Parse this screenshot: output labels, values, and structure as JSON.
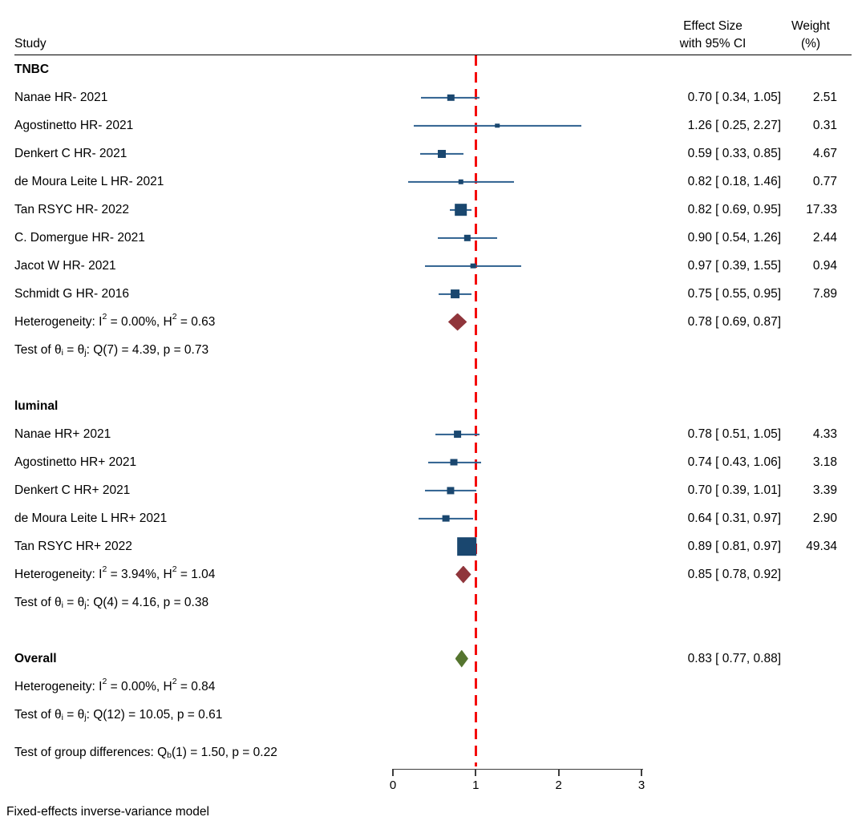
{
  "header": {
    "study": "Study",
    "effect_line1": "Effect Size",
    "effect_line2": "with 95% CI",
    "weight_line1": "Weight",
    "weight_line2": "(%)"
  },
  "footer": {
    "note": "Fixed-effects inverse-variance model"
  },
  "colors": {
    "square": "#1a476f",
    "ci_line": "#2f6190",
    "diamond_maroon": "#90353b",
    "diamond_green": "#55752f",
    "ref_line": "#f40b0b",
    "axis": "#3d3d3d",
    "rule": "#000000"
  },
  "chart_data": {
    "type": "forest",
    "title": "",
    "x_axis": {
      "min": 0,
      "max": 3,
      "ticks": [
        "0",
        "1",
        "2",
        "3"
      ],
      "ref_line": 1
    },
    "legend": null,
    "rows": [
      {
        "type": "group",
        "label": "TNBC"
      },
      {
        "type": "study",
        "label": "Nanae HR- 2021",
        "est": 0.7,
        "lo": 0.34,
        "hi": 1.05,
        "effect": "0.70 [ 0.34, 1.05]",
        "weight": "2.51",
        "w": 2.51
      },
      {
        "type": "study",
        "label": "Agostinetto HR- 2021",
        "est": 1.26,
        "lo": 0.25,
        "hi": 2.27,
        "effect": "1.26 [ 0.25, 2.27]",
        "weight": "0.31",
        "w": 0.31
      },
      {
        "type": "study",
        "label": "Denkert C HR- 2021",
        "est": 0.59,
        "lo": 0.33,
        "hi": 0.85,
        "effect": "0.59 [ 0.33, 0.85]",
        "weight": "4.67",
        "w": 4.67
      },
      {
        "type": "study",
        "label": "de Moura Leite L HR- 2021",
        "est": 0.82,
        "lo": 0.18,
        "hi": 1.46,
        "effect": "0.82 [ 0.18, 1.46]",
        "weight": "0.77",
        "w": 0.77
      },
      {
        "type": "study",
        "label": "Tan RSYC HR- 2022",
        "est": 0.82,
        "lo": 0.69,
        "hi": 0.95,
        "effect": "0.82 [ 0.69, 0.95]",
        "weight": "17.33",
        "w": 17.33
      },
      {
        "type": "study",
        "label": "C. Domergue HR- 2021",
        "est": 0.9,
        "lo": 0.54,
        "hi": 1.26,
        "effect": "0.90 [ 0.54, 1.26]",
        "weight": "2.44",
        "w": 2.44
      },
      {
        "type": "study",
        "label": "Jacot W HR- 2021",
        "est": 0.97,
        "lo": 0.39,
        "hi": 1.55,
        "effect": "0.97 [ 0.39, 1.55]",
        "weight": "0.94",
        "w": 0.94
      },
      {
        "type": "study",
        "label": "Schmidt G HR- 2016",
        "est": 0.75,
        "lo": 0.55,
        "hi": 0.95,
        "effect": "0.75 [ 0.55, 0.95]",
        "weight": "7.89",
        "w": 7.89
      },
      {
        "type": "summary",
        "label": "Heterogeneity: I^2^ = 0.00%, H^2^ = 0.63",
        "est": 0.78,
        "lo": 0.69,
        "hi": 0.87,
        "effect": "0.78 [ 0.69, 0.87]",
        "diamond": "maroon"
      },
      {
        "type": "text",
        "label": "Test of θ~i~ = θ~j~: Q(7) = 4.39, p = 0.73"
      },
      {
        "type": "spacer"
      },
      {
        "type": "group",
        "label": "luminal"
      },
      {
        "type": "study",
        "label": "Nanae HR+ 2021",
        "est": 0.78,
        "lo": 0.51,
        "hi": 1.05,
        "effect": "0.78 [ 0.51, 1.05]",
        "weight": "4.33",
        "w": 4.33
      },
      {
        "type": "study",
        "label": "Agostinetto HR+ 2021",
        "est": 0.74,
        "lo": 0.43,
        "hi": 1.06,
        "effect": "0.74 [ 0.43, 1.06]",
        "weight": "3.18",
        "w": 3.18
      },
      {
        "type": "study",
        "label": "Denkert C HR+ 2021",
        "est": 0.7,
        "lo": 0.39,
        "hi": 1.01,
        "effect": "0.70 [ 0.39, 1.01]",
        "weight": "3.39",
        "w": 3.39
      },
      {
        "type": "study",
        "label": "de Moura Leite L HR+ 2021",
        "est": 0.64,
        "lo": 0.31,
        "hi": 0.97,
        "effect": "0.64 [ 0.31, 0.97]",
        "weight": "2.90",
        "w": 2.9
      },
      {
        "type": "study",
        "label": "Tan RSYC HR+ 2022",
        "est": 0.89,
        "lo": 0.81,
        "hi": 0.97,
        "effect": "0.89 [ 0.81, 0.97]",
        "weight": "49.34",
        "w": 49.34
      },
      {
        "type": "summary",
        "label": "Heterogeneity: I^2^ = 3.94%, H^2^ = 1.04",
        "est": 0.85,
        "lo": 0.78,
        "hi": 0.92,
        "effect": "0.85 [ 0.78, 0.92]",
        "diamond": "maroon"
      },
      {
        "type": "text",
        "label": "Test of θ~i~ = θ~j~: Q(4) = 4.16, p = 0.38"
      },
      {
        "type": "spacer"
      },
      {
        "type": "overall",
        "label": "Overall",
        "est": 0.83,
        "lo": 0.77,
        "hi": 0.88,
        "effect": "0.83 [ 0.77, 0.88]",
        "diamond": "green"
      },
      {
        "type": "text",
        "label": "Heterogeneity: I^2^ = 0.00%, H^2^ = 0.84"
      },
      {
        "type": "text",
        "label": "Test of θ~i~ = θ~j~: Q(12) = 10.05, p = 0.61"
      },
      {
        "type": "spacer_sm"
      },
      {
        "type": "text",
        "label": "Test of group differences: Q~b~(1) = 1.50, p = 0.22"
      }
    ]
  }
}
